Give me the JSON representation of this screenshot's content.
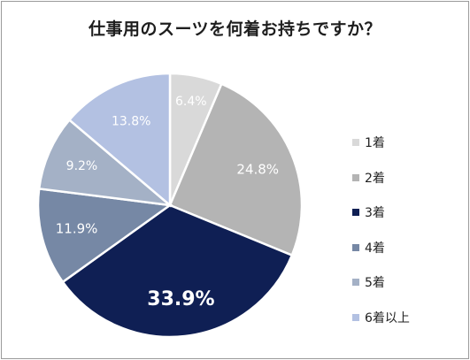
{
  "chart_data": {
    "type": "pie",
    "title": "仕事用のスーツを何着お持ちですか？",
    "categories": [
      "1着",
      "2着",
      "3着",
      "4着",
      "5着",
      "6着以上"
    ],
    "values": [
      6.4,
      24.8,
      33.9,
      11.9,
      9.2,
      13.8
    ],
    "value_labels": [
      "6.4%",
      "24.8%",
      "33.9%",
      "11.9%",
      "9.2%",
      "13.8%"
    ],
    "colors": [
      "#d9d9d9",
      "#b4b4b4",
      "#0f1f54",
      "#7688a5",
      "#a4b1c6",
      "#b3c1e2"
    ],
    "label_colors": [
      "#ffffff",
      "#ffffff",
      "#ffffff",
      "#ffffff",
      "#ffffff",
      "#ffffff"
    ],
    "legend_position": "right",
    "start": "top",
    "direction": "clockwise"
  }
}
